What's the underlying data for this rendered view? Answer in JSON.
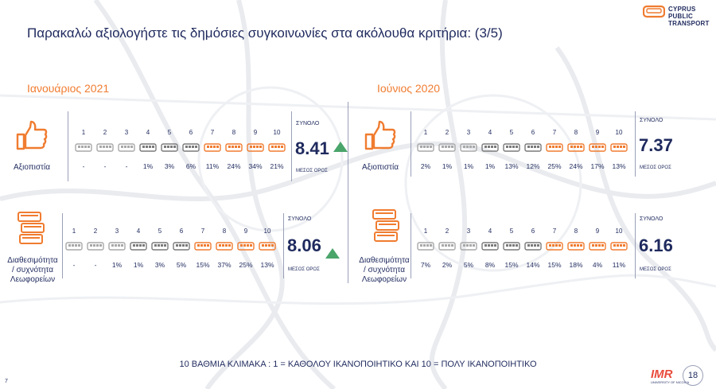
{
  "title": "Παρακαλώ αξιολογήστε τις δημόσιες συγκοινωνίες στα ακόλουθα κριτήρια: (3/5)",
  "logo": {
    "line1": "CYPRUS",
    "line2": "PUBLIC",
    "line3": "TRANSPORT"
  },
  "scale_numbers": [
    "1",
    "2",
    "3",
    "4",
    "5",
    "6",
    "7",
    "8",
    "9",
    "10"
  ],
  "colors": {
    "navy": "#1f2a5e",
    "orange": "#f07c30",
    "gray": "#a8a8a8",
    "darkgray": "#7a7a7a",
    "green": "#4aa56b"
  },
  "total_label": "ΣΥΝΟΛΟ",
  "mean_label": "ΜΕΣΟΣ ΟΡΟΣ",
  "left": {
    "period": "Ιανουάριος 2021",
    "reliability": {
      "label": "Αξιοπιστία",
      "icon": "thumbs-up-icon",
      "values": [
        "-",
        "-",
        "-",
        "1%",
        "3%",
        "6%",
        "11%",
        "24%",
        "34%",
        "21%"
      ],
      "total": "8.41",
      "trend": "up"
    },
    "availability": {
      "label_l1": "Διαθεσιμότητα",
      "label_l2": "/ συχνότητα",
      "label_l3": "Λεωφορείων",
      "icon": "buses-icon",
      "values": [
        "-",
        "-",
        "1%",
        "1%",
        "3%",
        "5%",
        "15%",
        "37%",
        "25%",
        "13%"
      ],
      "total": "8.06",
      "trend": "up"
    }
  },
  "right": {
    "period": "Ιούνιος 2020",
    "reliability": {
      "label": "Αξιοπιστία",
      "icon": "thumbs-up-icon",
      "values": [
        "2%",
        "1%",
        "1%",
        "1%",
        "13%",
        "12%",
        "25%",
        "24%",
        "17%",
        "13%"
      ],
      "total": "7.37"
    },
    "availability": {
      "label_l1": "Διαθεσιμότητα",
      "label_l2": "/ συχνότητα",
      "label_l3": "Λεωφορείων",
      "icon": "buses-icon",
      "values": [
        "7%",
        "2%",
        "5%",
        "8%",
        "15%",
        "14%",
        "15%",
        "18%",
        "4%",
        "11%"
      ],
      "total": "6.16"
    }
  },
  "scale_note": "10 ΒΑΘΜΙΑ ΚΛΙΜΑΚΑ : 1 = ΚΑΘΟΛΟΥ ΙΚΑΝΟΠΟΙΗΤΙΚΟ ΚΑΙ 10 = ΠΟΛΥ ΙΚΑΝΟΠΟΙΗΤΙΚΟ",
  "page_number": "7",
  "imr_logo": "IMR",
  "imr_sub": "UNIVERSITY OF NICOSIA",
  "badge": "18"
}
